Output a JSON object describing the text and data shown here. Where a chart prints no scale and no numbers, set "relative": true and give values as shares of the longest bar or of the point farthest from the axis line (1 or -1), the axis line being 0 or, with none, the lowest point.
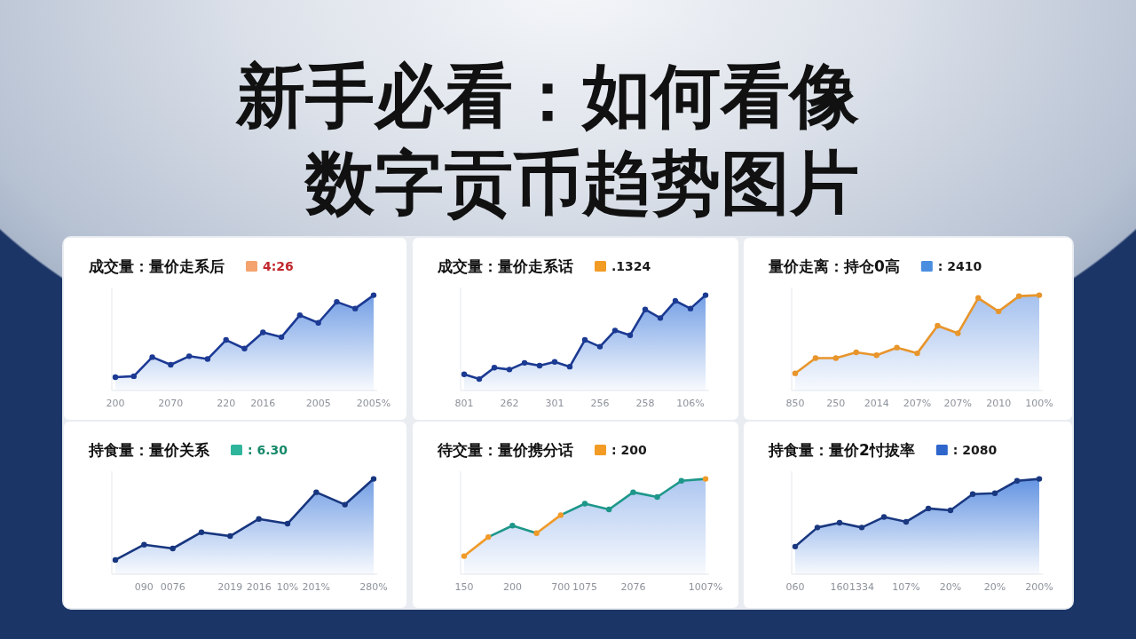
{
  "chart_data": [
    {
      "type": "other",
      "title": "新手必看：如何看像数字贡币趋势图片"
    },
    {
      "type": "area",
      "title": "成交量：量价走系后",
      "annotations": [
        "4:26"
      ],
      "relative": true,
      "categories": [
        "200",
        null,
        null,
        "2070",
        null,
        null,
        "220",
        null,
        "2016",
        null,
        null,
        "2005",
        null,
        null,
        "2005%"
      ],
      "series": [
        {
          "color": "#1c3a94",
          "values": [
            0.14,
            0.15,
            0.35,
            0.27,
            0.36,
            0.33,
            0.53,
            0.44,
            0.61,
            0.56,
            0.79,
            0.71,
            0.93,
            0.86,
            1
          ]
        }
      ],
      "marker": "circle"
    },
    {
      "type": "area",
      "title": "成交量：量价走系话",
      "annotations": [
        ".1324"
      ],
      "relative": true,
      "categories": [
        "801",
        null,
        null,
        "262",
        null,
        null,
        "301",
        null,
        null,
        "256",
        null,
        null,
        "258",
        null,
        null,
        "106%",
        null
      ],
      "series": [
        {
          "color": "#1b3a92",
          "values": [
            0.17,
            0.12,
            0.24,
            0.22,
            0.29,
            0.26,
            0.3,
            0.25,
            0.53,
            0.46,
            0.63,
            0.58,
            0.85,
            0.76,
            0.94,
            0.86,
            1
          ]
        }
      ],
      "marker": "circle"
    },
    {
      "type": "area",
      "title": "量价走离：持仓0高",
      "annotations": [
        ": 2410"
      ],
      "relative": true,
      "categories": [
        "850",
        null,
        "250",
        null,
        "2014",
        null,
        "207%",
        null,
        "207%",
        null,
        "2010",
        null,
        "100%"
      ],
      "series": [
        {
          "color": "#e8952b",
          "values": [
            0.18,
            0.34,
            0.34,
            0.4,
            0.37,
            0.45,
            0.39,
            0.68,
            0.6,
            0.97,
            0.83,
            0.99,
            1
          ]
        }
      ],
      "marker": "circle"
    },
    {
      "type": "area",
      "title": "持食量：量价关系",
      "annotations": [
        ": 6.30"
      ],
      "relative": true,
      "categories": [
        null,
        "090",
        "0076",
        null,
        "2019",
        "2016",
        "10%",
        "201%",
        null,
        "280%"
      ],
      "series": [
        {
          "color": "#17367f",
          "values": [
            0.15,
            0.31,
            0.27,
            0.44,
            0.4,
            0.58,
            0.53,
            0.86,
            0.73,
            1
          ]
        }
      ],
      "marker": "circle"
    },
    {
      "type": "area",
      "title": "待交量：量价携分话",
      "annotations": [
        ": 200"
      ],
      "relative": true,
      "categories": [
        "150",
        null,
        "200",
        null,
        "700",
        "1075",
        null,
        "2076",
        null,
        null,
        "1007%"
      ],
      "series": [
        {
          "color": "#1e978a",
          "colors": [
            "#f09a28",
            "#f09a28",
            "#1e978a",
            "#f09a28",
            "#f09a28",
            "#1e978a",
            "#1e978a",
            "#1e978a",
            "#1e978a",
            "#1e978a",
            "#f09a28"
          ],
          "values": [
            0.19,
            0.39,
            0.51,
            0.43,
            0.62,
            0.74,
            0.68,
            0.86,
            0.81,
            0.98,
            1
          ]
        }
      ],
      "marker": "circle"
    },
    {
      "type": "area",
      "title": "持食量：量价2忖拔率",
      "annotations": [
        ": 2080"
      ],
      "relative": true,
      "categories": [
        "060",
        null,
        "160",
        "1334",
        null,
        "107%",
        null,
        "20%",
        null,
        "20%",
        null,
        "200%"
      ],
      "series": [
        {
          "color": "#1a3880",
          "values": [
            0.29,
            0.49,
            0.54,
            0.49,
            0.6,
            0.55,
            0.69,
            0.67,
            0.84,
            0.85,
            0.98,
            1
          ]
        }
      ],
      "marker": "circle"
    }
  ]
}
